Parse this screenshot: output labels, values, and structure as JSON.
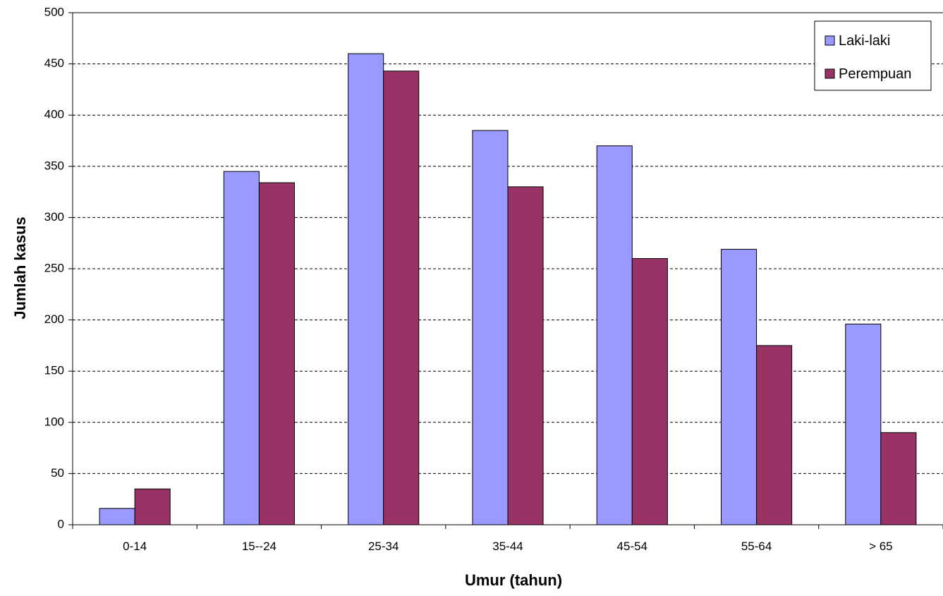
{
  "chart_data": {
    "type": "bar",
    "title": "",
    "xlabel": "Umur (tahun)",
    "ylabel": "Jumlah kasus",
    "categories": [
      "0-14",
      "15--24",
      "25-34",
      "35-44",
      "45-54",
      "55-64",
      "> 65"
    ],
    "series": [
      {
        "name": "Laki-laki",
        "color": "#9999ff",
        "values": [
          16,
          345,
          460,
          385,
          370,
          269,
          196
        ]
      },
      {
        "name": "Perempuan",
        "color": "#993366",
        "values": [
          35,
          334,
          443,
          330,
          260,
          175,
          90
        ]
      }
    ],
    "ylim": [
      0,
      500
    ],
    "yticks": [
      0,
      50,
      100,
      150,
      200,
      250,
      300,
      350,
      400,
      450,
      500
    ],
    "grid": true,
    "legend_position": "top-right"
  }
}
